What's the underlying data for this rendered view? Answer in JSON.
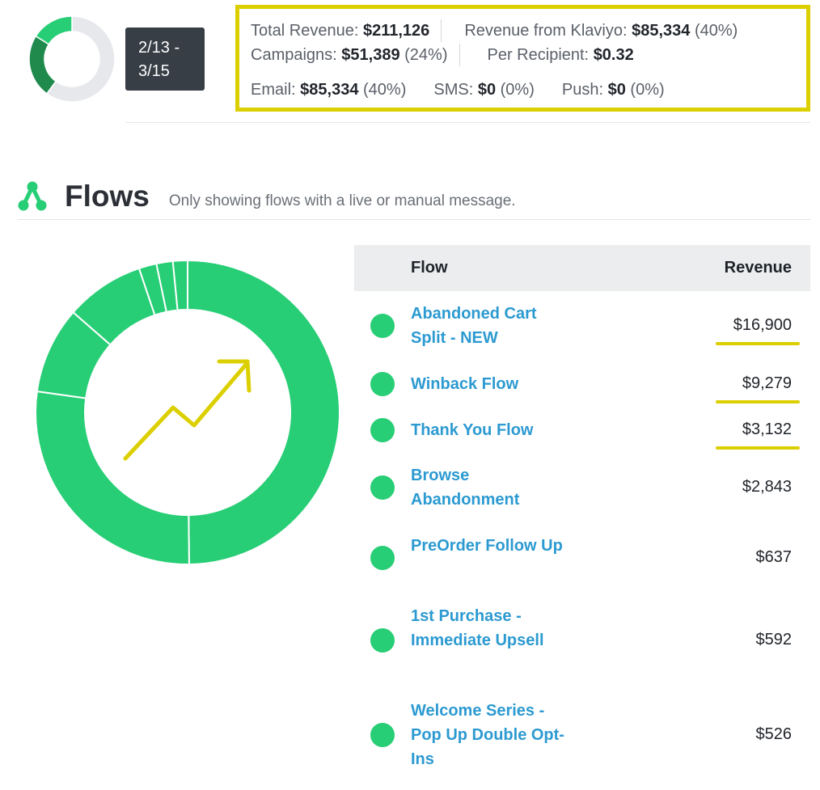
{
  "date_range": {
    "line1": "2/13 -",
    "line2": "3/15"
  },
  "summary": {
    "total_revenue_label": "Total Revenue:",
    "total_revenue_value": "$211,126",
    "klaviyo_label": "Revenue from Klaviyo:",
    "klaviyo_value": "$85,334",
    "klaviyo_pct": "(40%)",
    "campaigns_label": "Campaigns:",
    "campaigns_value": "$51,389",
    "campaigns_pct": "(24%)",
    "per_recipient_label": "Per Recipient:",
    "per_recipient_value": "$0.32",
    "email_label": "Email:",
    "email_value": "$85,334",
    "email_pct": "(40%)",
    "sms_label": "SMS:",
    "sms_value": "$0",
    "sms_pct": "(0%)",
    "push_label": "Push:",
    "push_value": "$0",
    "push_pct": "(0%)"
  },
  "summary_donut": {
    "segments": [
      {
        "share": 0.6,
        "color": "#e6e8eb"
      },
      {
        "share": 0.24,
        "color": "#1f8a4c"
      },
      {
        "share": 0.16,
        "color": "#27ce75"
      }
    ]
  },
  "flows": {
    "title": "Flows",
    "subtitle": "Only showing flows with a live or manual message.",
    "table_headers": {
      "flow": "Flow",
      "revenue": "Revenue"
    },
    "rows": [
      {
        "name": "Abandoned Cart Split - NEW",
        "revenue": "$16,900",
        "amount": 16900,
        "highlighted": true
      },
      {
        "name": "Winback Flow",
        "revenue": "$9,279",
        "amount": 9279,
        "highlighted": true
      },
      {
        "name": "Thank You Flow",
        "revenue": "$3,132",
        "amount": 3132,
        "highlighted": true
      },
      {
        "name": "Browse Abandonment",
        "revenue": "$2,843",
        "amount": 2843,
        "highlighted": false
      },
      {
        "name": "PreOrder Follow Up",
        "revenue": "$637",
        "amount": 637,
        "highlighted": false
      },
      {
        "name": "1st Purchase - Immediate Upsell",
        "revenue": "$592",
        "amount": 592,
        "highlighted": false
      },
      {
        "name": "Welcome Series - Pop Up Double Opt-Ins",
        "revenue": "$526",
        "amount": 526,
        "highlighted": false
      }
    ]
  },
  "colors": {
    "accent_green": "#27ce75",
    "link_blue": "#2c9ad1",
    "highlight_yellow": "#dccf00"
  }
}
